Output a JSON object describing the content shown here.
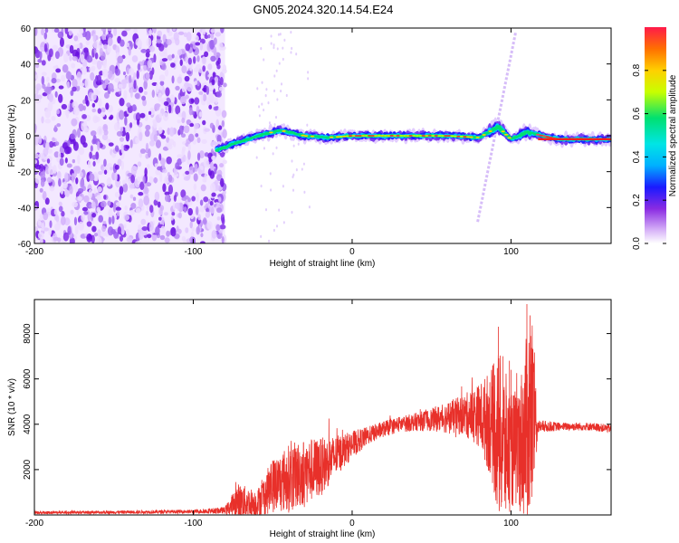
{
  "title": "GN05.2024.320.14.54.E24",
  "chart_data": [
    {
      "type": "heatmap",
      "xlabel": "Height of straight line (km)",
      "ylabel": "Frequency (Hz)",
      "xlim": [
        -200,
        163
      ],
      "ylim": [
        -60,
        60
      ],
      "xticks": [
        -200,
        -100,
        0,
        100
      ],
      "yticks": [
        -60,
        -40,
        -20,
        0,
        20,
        40,
        60
      ],
      "colorbar": {
        "label": "Normalized spectral amplitude",
        "range": [
          0,
          1
        ],
        "ticks": [
          0,
          0.2,
          0.4,
          0.6,
          0.8
        ]
      },
      "features": {
        "noise_region_x": [
          -200,
          -80
        ],
        "signal_track_x": [
          -85,
          163
        ],
        "signal_center_frequency_hz": [
          [
            -85,
            -8
          ],
          [
            -70,
            -3
          ],
          [
            -55,
            1
          ],
          [
            -45,
            3
          ],
          [
            -30,
            0
          ],
          [
            -15,
            -1
          ],
          [
            0,
            0
          ],
          [
            20,
            0
          ],
          [
            40,
            0
          ],
          [
            60,
            0
          ],
          [
            80,
            -1
          ],
          [
            92,
            5
          ],
          [
            100,
            -2
          ],
          [
            110,
            2
          ],
          [
            130,
            -2
          ],
          [
            163,
            -2
          ]
        ],
        "peak_amplitude_x": [
          -10,
          75
        ],
        "diagonal_streak": {
          "start": [
            79,
            -48
          ],
          "end": [
            103,
            58
          ]
        },
        "sparse_streak_x": [
          -60,
          -25
        ]
      }
    },
    {
      "type": "line",
      "xlabel": "Height of straight line (km)",
      "ylabel": "SNR (10 * v/v)",
      "xlim": [
        -200,
        163
      ],
      "ylim": [
        0,
        9500
      ],
      "xticks": [
        -200,
        -100,
        0,
        100
      ],
      "yticks": [
        2000,
        4000,
        6000,
        8000
      ],
      "color": "#e8302a",
      "envelope": [
        {
          "x": -200,
          "y": 100,
          "amp": 60
        },
        {
          "x": -150,
          "y": 120,
          "amp": 70
        },
        {
          "x": -100,
          "y": 150,
          "amp": 80
        },
        {
          "x": -80,
          "y": 200,
          "amp": 150
        },
        {
          "x": -72,
          "y": 600,
          "amp": 800
        },
        {
          "x": -60,
          "y": 500,
          "amp": 600
        },
        {
          "x": -50,
          "y": 1300,
          "amp": 1200
        },
        {
          "x": -40,
          "y": 1600,
          "amp": 1500
        },
        {
          "x": -30,
          "y": 1900,
          "amp": 1500
        },
        {
          "x": -20,
          "y": 2100,
          "amp": 1300
        },
        {
          "x": -10,
          "y": 2600,
          "amp": 900
        },
        {
          "x": 0,
          "y": 3100,
          "amp": 600
        },
        {
          "x": 10,
          "y": 3500,
          "amp": 400
        },
        {
          "x": 20,
          "y": 3800,
          "amp": 350
        },
        {
          "x": 30,
          "y": 4000,
          "amp": 350
        },
        {
          "x": 40,
          "y": 4100,
          "amp": 400
        },
        {
          "x": 50,
          "y": 4200,
          "amp": 500
        },
        {
          "x": 60,
          "y": 4300,
          "amp": 700
        },
        {
          "x": 70,
          "y": 4400,
          "amp": 900
        },
        {
          "x": 80,
          "y": 4400,
          "amp": 1400
        },
        {
          "x": 88,
          "y": 4000,
          "amp": 2500
        },
        {
          "x": 92,
          "y": 3500,
          "amp": 3800
        },
        {
          "x": 96,
          "y": 3000,
          "amp": 3500
        },
        {
          "x": 100,
          "y": 2800,
          "amp": 2500
        },
        {
          "x": 105,
          "y": 3000,
          "amp": 2800
        },
        {
          "x": 110,
          "y": 3800,
          "amp": 4200
        },
        {
          "x": 113,
          "y": 4500,
          "amp": 5000
        },
        {
          "x": 117,
          "y": 3900,
          "amp": 300
        },
        {
          "x": 130,
          "y": 3900,
          "amp": 180
        },
        {
          "x": 150,
          "y": 3900,
          "amp": 180
        },
        {
          "x": 163,
          "y": 3800,
          "amp": 180
        }
      ],
      "peaks": [
        [
          92,
          8300
        ],
        [
          95,
          7000
        ],
        [
          99,
          6800
        ],
        [
          110,
          9300
        ],
        [
          112,
          8800
        ],
        [
          100,
          6400
        ],
        [
          -50,
          2400
        ]
      ]
    }
  ]
}
